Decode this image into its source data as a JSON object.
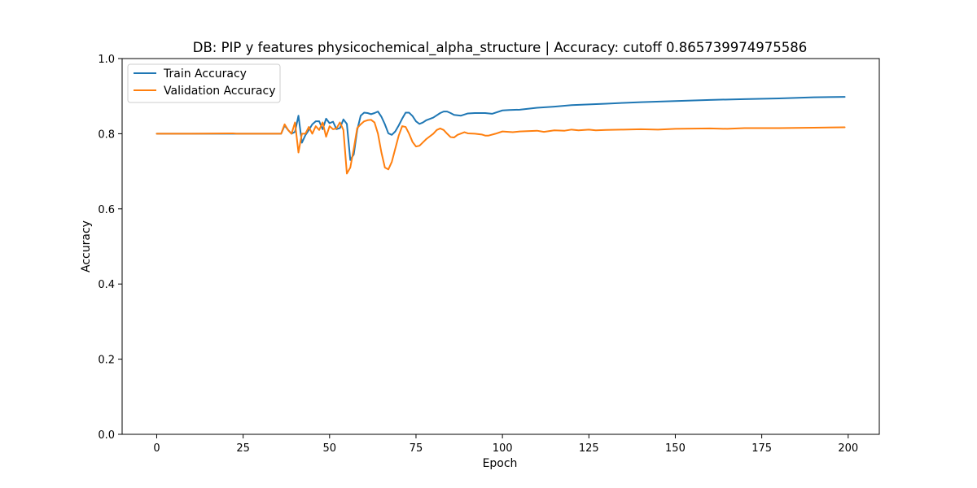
{
  "chart_data": {
    "type": "line",
    "title": "DB: PIP y features physicochemical_alpha_structure | Accuracy: cutoff 0.865739974975586",
    "xlabel": "Epoch",
    "ylabel": "Accuracy",
    "xlim": [
      -10,
      209
    ],
    "ylim": [
      0.0,
      1.0
    ],
    "xticks": [
      0,
      25,
      50,
      75,
      100,
      125,
      150,
      175,
      200
    ],
    "yticks": [
      0.0,
      0.2,
      0.4,
      0.6,
      0.8,
      1.0
    ],
    "xtick_labels": [
      "0",
      "25",
      "50",
      "75",
      "100",
      "125",
      "150",
      "175",
      "200"
    ],
    "ytick_labels": [
      "0.0",
      "0.2",
      "0.4",
      "0.6",
      "0.8",
      "1.0"
    ],
    "grid": false,
    "legend_position": "top-left",
    "series": [
      {
        "name": "Train Accuracy",
        "color": "#1f77b4",
        "points": [
          [
            0,
            0.8
          ],
          [
            10,
            0.8
          ],
          [
            20,
            0.8
          ],
          [
            30,
            0.8
          ],
          [
            35,
            0.8
          ],
          [
            36,
            0.8
          ],
          [
            37,
            0.822
          ],
          [
            38,
            0.81
          ],
          [
            39,
            0.8
          ],
          [
            40,
            0.805
          ],
          [
            41,
            0.848
          ],
          [
            42,
            0.776
          ],
          [
            43,
            0.796
          ],
          [
            44,
            0.81
          ],
          [
            45,
            0.825
          ],
          [
            46,
            0.833
          ],
          [
            47,
            0.833
          ],
          [
            48,
            0.812
          ],
          [
            49,
            0.84
          ],
          [
            50,
            0.828
          ],
          [
            51,
            0.832
          ],
          [
            52,
            0.812
          ],
          [
            53,
            0.815
          ],
          [
            54,
            0.838
          ],
          [
            55,
            0.826
          ],
          [
            56,
            0.73
          ],
          [
            57,
            0.745
          ],
          [
            58,
            0.81
          ],
          [
            59,
            0.848
          ],
          [
            60,
            0.856
          ],
          [
            61,
            0.855
          ],
          [
            62,
            0.852
          ],
          [
            63,
            0.855
          ],
          [
            64,
            0.859
          ],
          [
            65,
            0.845
          ],
          [
            66,
            0.825
          ],
          [
            67,
            0.801
          ],
          [
            68,
            0.797
          ],
          [
            69,
            0.806
          ],
          [
            70,
            0.822
          ],
          [
            71,
            0.84
          ],
          [
            72,
            0.856
          ],
          [
            73,
            0.856
          ],
          [
            74,
            0.847
          ],
          [
            75,
            0.833
          ],
          [
            76,
            0.826
          ],
          [
            77,
            0.83
          ],
          [
            78,
            0.836
          ],
          [
            80,
            0.843
          ],
          [
            82,
            0.855
          ],
          [
            83,
            0.859
          ],
          [
            84,
            0.859
          ],
          [
            85,
            0.855
          ],
          [
            86,
            0.85
          ],
          [
            88,
            0.848
          ],
          [
            90,
            0.854
          ],
          [
            92,
            0.855
          ],
          [
            95,
            0.855
          ],
          [
            97,
            0.853
          ],
          [
            100,
            0.862
          ],
          [
            102,
            0.863
          ],
          [
            105,
            0.864
          ],
          [
            110,
            0.869
          ],
          [
            115,
            0.872
          ],
          [
            120,
            0.876
          ],
          [
            125,
            0.878
          ],
          [
            130,
            0.88
          ],
          [
            135,
            0.882
          ],
          [
            140,
            0.884
          ],
          [
            150,
            0.887
          ],
          [
            160,
            0.89
          ],
          [
            170,
            0.892
          ],
          [
            180,
            0.894
          ],
          [
            190,
            0.897
          ],
          [
            199,
            0.898
          ]
        ]
      },
      {
        "name": "Validation Accuracy",
        "color": "#ff7f0e",
        "points": [
          [
            0,
            0.8
          ],
          [
            10,
            0.8
          ],
          [
            22,
            0.801
          ],
          [
            23,
            0.8
          ],
          [
            30,
            0.8
          ],
          [
            35,
            0.8
          ],
          [
            36,
            0.8
          ],
          [
            37,
            0.825
          ],
          [
            38,
            0.81
          ],
          [
            39,
            0.8
          ],
          [
            40,
            0.83
          ],
          [
            41,
            0.75
          ],
          [
            42,
            0.8
          ],
          [
            43,
            0.8
          ],
          [
            44,
            0.818
          ],
          [
            45,
            0.8
          ],
          [
            46,
            0.82
          ],
          [
            47,
            0.81
          ],
          [
            48,
            0.83
          ],
          [
            49,
            0.792
          ],
          [
            50,
            0.82
          ],
          [
            51,
            0.812
          ],
          [
            52,
            0.814
          ],
          [
            53,
            0.83
          ],
          [
            54,
            0.81
          ],
          [
            55,
            0.694
          ],
          [
            56,
            0.71
          ],
          [
            57,
            0.76
          ],
          [
            58,
            0.815
          ],
          [
            59,
            0.825
          ],
          [
            60,
            0.833
          ],
          [
            61,
            0.836
          ],
          [
            62,
            0.837
          ],
          [
            63,
            0.83
          ],
          [
            64,
            0.8
          ],
          [
            65,
            0.75
          ],
          [
            66,
            0.71
          ],
          [
            67,
            0.705
          ],
          [
            68,
            0.725
          ],
          [
            69,
            0.76
          ],
          [
            70,
            0.795
          ],
          [
            71,
            0.82
          ],
          [
            72,
            0.818
          ],
          [
            73,
            0.8
          ],
          [
            74,
            0.778
          ],
          [
            75,
            0.766
          ],
          [
            76,
            0.768
          ],
          [
            77,
            0.777
          ],
          [
            78,
            0.786
          ],
          [
            80,
            0.8
          ],
          [
            81,
            0.81
          ],
          [
            82,
            0.814
          ],
          [
            83,
            0.81
          ],
          [
            84,
            0.8
          ],
          [
            85,
            0.791
          ],
          [
            86,
            0.79
          ],
          [
            87,
            0.797
          ],
          [
            89,
            0.804
          ],
          [
            90,
            0.801
          ],
          [
            92,
            0.8
          ],
          [
            94,
            0.798
          ],
          [
            95,
            0.795
          ],
          [
            96,
            0.795
          ],
          [
            98,
            0.8
          ],
          [
            100,
            0.806
          ],
          [
            103,
            0.804
          ],
          [
            105,
            0.806
          ],
          [
            110,
            0.808
          ],
          [
            112,
            0.805
          ],
          [
            115,
            0.809
          ],
          [
            118,
            0.808
          ],
          [
            120,
            0.811
          ],
          [
            122,
            0.809
          ],
          [
            125,
            0.811
          ],
          [
            127,
            0.809
          ],
          [
            130,
            0.81
          ],
          [
            135,
            0.811
          ],
          [
            140,
            0.812
          ],
          [
            145,
            0.811
          ],
          [
            150,
            0.813
          ],
          [
            160,
            0.814
          ],
          [
            165,
            0.813
          ],
          [
            170,
            0.815
          ],
          [
            180,
            0.815
          ],
          [
            190,
            0.816
          ],
          [
            199,
            0.817
          ]
        ]
      }
    ]
  }
}
